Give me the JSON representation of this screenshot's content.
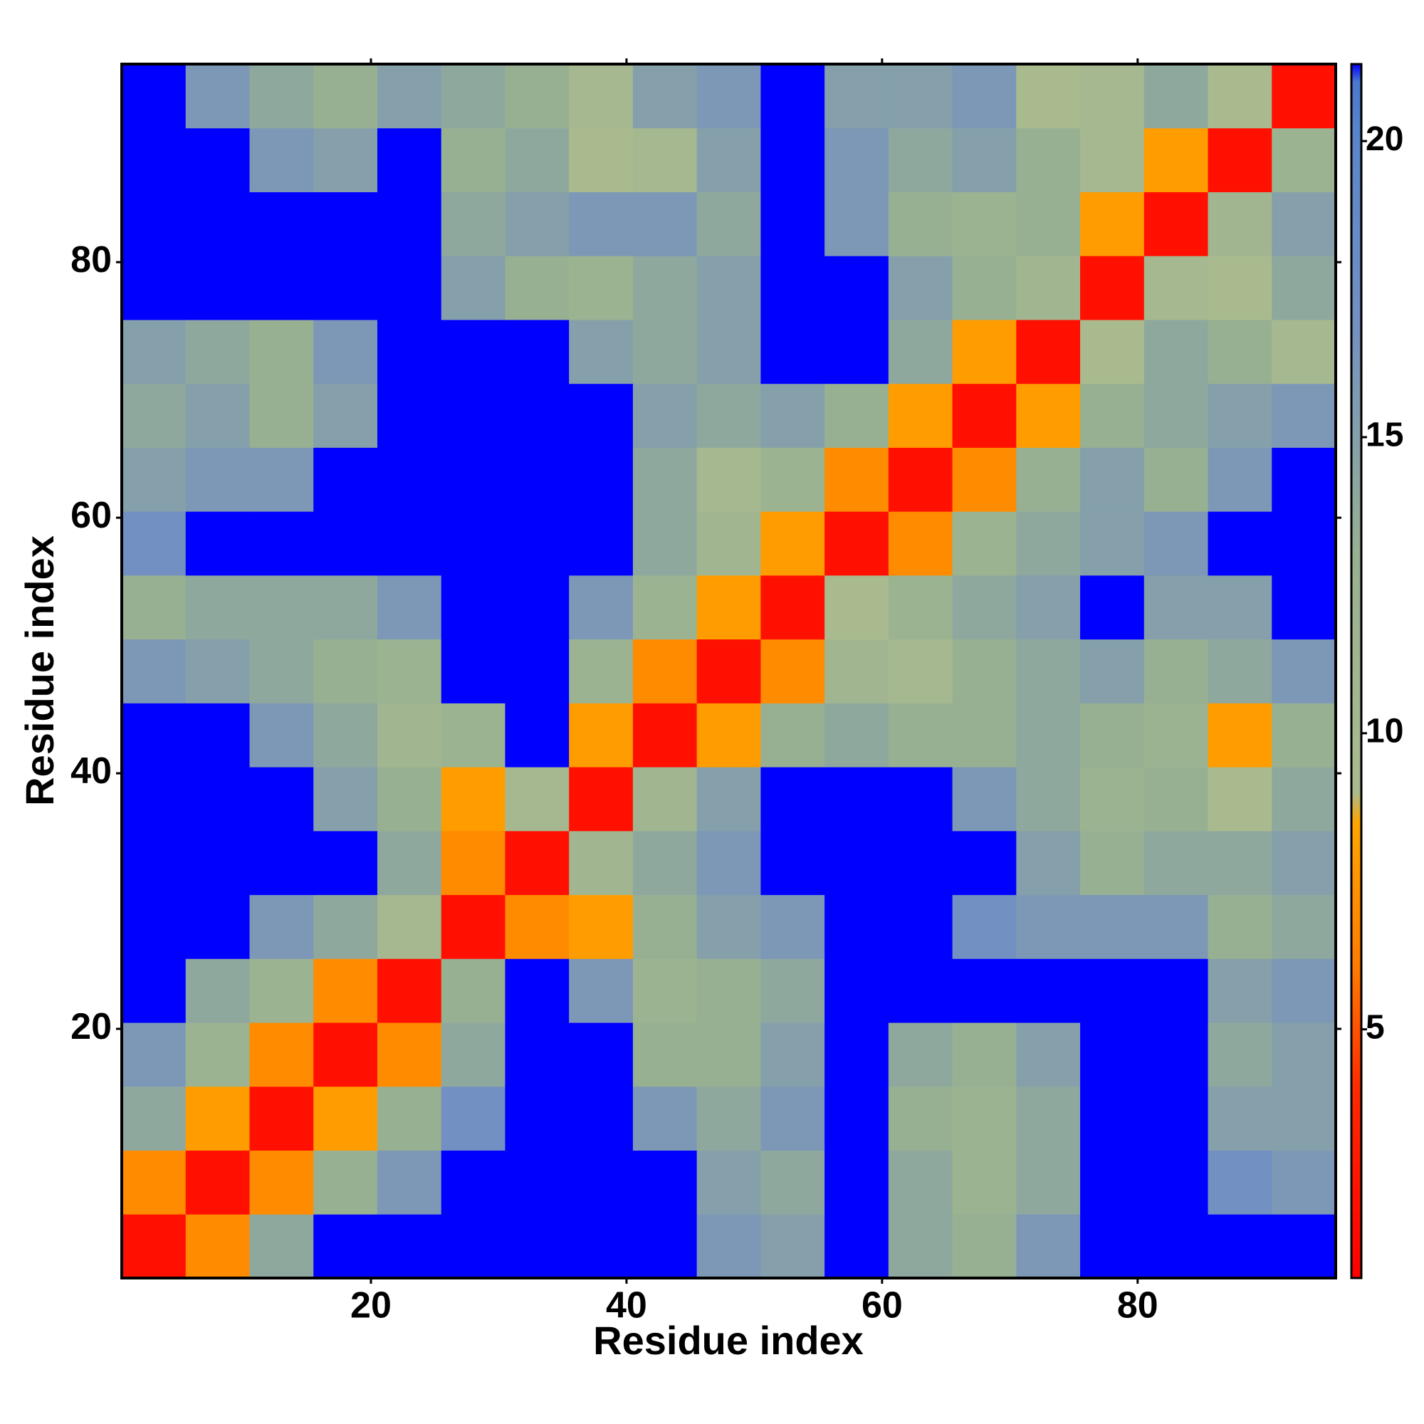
{
  "chart_data": {
    "type": "heatmap",
    "x_label": "Residue index",
    "y_label": "Residue index",
    "xbins": [
      0.5,
      5.5,
      10.5,
      15.5,
      20.5,
      25.5,
      30.5,
      35.5,
      40.5,
      45.5,
      50.5,
      55.5,
      60.5,
      65.5,
      70.5,
      75.5,
      80.5,
      85.5,
      90.5,
      95.5
    ],
    "ybins": [
      0.5,
      5.5,
      10.5,
      15.5,
      20.5,
      25.5,
      30.5,
      35.5,
      40.5,
      45.5,
      50.5,
      55.5,
      60.5,
      65.5,
      70.5,
      75.5,
      80.5,
      85.5,
      90.5,
      95.5
    ],
    "xlim": [
      0.5,
      95.5
    ],
    "ylim": [
      0.5,
      95.5
    ],
    "xticks": [
      20,
      40,
      60,
      80
    ],
    "yticks": [
      20,
      40,
      60,
      80
    ],
    "zlim": [
      0.8,
      21.3
    ],
    "zticks": [
      5,
      10,
      15,
      20
    ],
    "colorscale": [
      [
        0.8,
        "#ff0000"
      ],
      [
        4,
        "#ff2a00"
      ],
      [
        6,
        "#ff7a00"
      ],
      [
        8.5,
        "#ffa500"
      ],
      [
        9,
        "#a9bb8e"
      ],
      [
        13,
        "#98b092"
      ],
      [
        17,
        "#7290c2"
      ],
      [
        20,
        "#5a86c8"
      ],
      [
        21,
        "#4a78d0"
      ],
      [
        21.3,
        "#0000ff"
      ]
    ],
    "z": [
      [
        2,
        7,
        14,
        21.3,
        21.3,
        21.3,
        21.3,
        21.3,
        21.3,
        16,
        15,
        21.3,
        14,
        13,
        16,
        21.3,
        21.3,
        21.3,
        21.3
      ],
      [
        7,
        2,
        7,
        13,
        16,
        21.3,
        21.3,
        21.3,
        21.3,
        15,
        14,
        21.3,
        14,
        12,
        14,
        21.3,
        21.3,
        17,
        16
      ],
      [
        14,
        8,
        2,
        8,
        13,
        17,
        21.3,
        21.3,
        16,
        14,
        16,
        21.3,
        13,
        12,
        14,
        21.3,
        21.3,
        15,
        15
      ],
      [
        16,
        12,
        7,
        2,
        7,
        14,
        21.3,
        21.3,
        13,
        13,
        15,
        21.3,
        14,
        13,
        15,
        21.3,
        21.3,
        14,
        15
      ],
      [
        21.3,
        14,
        12,
        7,
        2,
        13,
        21.3,
        16,
        12,
        13,
        14,
        21.3,
        21.3,
        21.3,
        21.3,
        21.3,
        21.3,
        15,
        16
      ],
      [
        21.3,
        21.3,
        16,
        14,
        10,
        2,
        7,
        8,
        13,
        15,
        16,
        21.3,
        21.3,
        17,
        16,
        16,
        16,
        13,
        14
      ],
      [
        21.3,
        21.3,
        21.3,
        21.3,
        14,
        7,
        2,
        11,
        14,
        16,
        21.3,
        21.3,
        21.3,
        21.3,
        15,
        13,
        14,
        14,
        15
      ],
      [
        21.3,
        21.3,
        21.3,
        15,
        13,
        8,
        10,
        2,
        11,
        15,
        21.3,
        21.3,
        21.3,
        16,
        14,
        12,
        13,
        9,
        14
      ],
      [
        21.3,
        21.3,
        16,
        14,
        11,
        12,
        21.3,
        8,
        2,
        8,
        13,
        14,
        13,
        13,
        14,
        13,
        12,
        8,
        13
      ],
      [
        16,
        15,
        14,
        13,
        12,
        21.3,
        21.3,
        12,
        7,
        2,
        7,
        11,
        10,
        13,
        14,
        15,
        13,
        14,
        16
      ],
      [
        13,
        14,
        14,
        14,
        16,
        21.3,
        21.3,
        16,
        12,
        8,
        2,
        9,
        12,
        14,
        15,
        21.3,
        15,
        15,
        21.3
      ],
      [
        17,
        21.3,
        21.3,
        21.3,
        21.3,
        21.3,
        21.3,
        21.3,
        14,
        11,
        8,
        2,
        7,
        12,
        14,
        15,
        16,
        21.3,
        21.3
      ],
      [
        15,
        16,
        16,
        21.3,
        21.3,
        21.3,
        21.3,
        21.3,
        14,
        10,
        12,
        7,
        2,
        7,
        13,
        15,
        13,
        16,
        21.3
      ],
      [
        14,
        15,
        13,
        15,
        21.3,
        21.3,
        21.3,
        21.3,
        15,
        14,
        15,
        13,
        8,
        2,
        8,
        13,
        14,
        15,
        16
      ],
      [
        15,
        14,
        13,
        16,
        21.3,
        21.3,
        21.3,
        15,
        14,
        15,
        21.3,
        21.3,
        14,
        8,
        2,
        9,
        14,
        13,
        10
      ],
      [
        21.3,
        21.3,
        21.3,
        21.3,
        21.3,
        15,
        13,
        12,
        14,
        15,
        21.3,
        21.3,
        15,
        13,
        11,
        2,
        10,
        9,
        14
      ],
      [
        21.3,
        21.3,
        21.3,
        21.3,
        21.3,
        14,
        15,
        16,
        16,
        14,
        21.3,
        16,
        13,
        12,
        13,
        8,
        2,
        11,
        15
      ],
      [
        21.3,
        21.3,
        16,
        15,
        21.3,
        13,
        14,
        9,
        10,
        15,
        21.3,
        16,
        14,
        15,
        13,
        10,
        8,
        2,
        12
      ],
      [
        21.3,
        16,
        14,
        13,
        15,
        14,
        13,
        10,
        15,
        16,
        21.3,
        15,
        15,
        16,
        9,
        10,
        14,
        9,
        2
      ]
    ]
  }
}
